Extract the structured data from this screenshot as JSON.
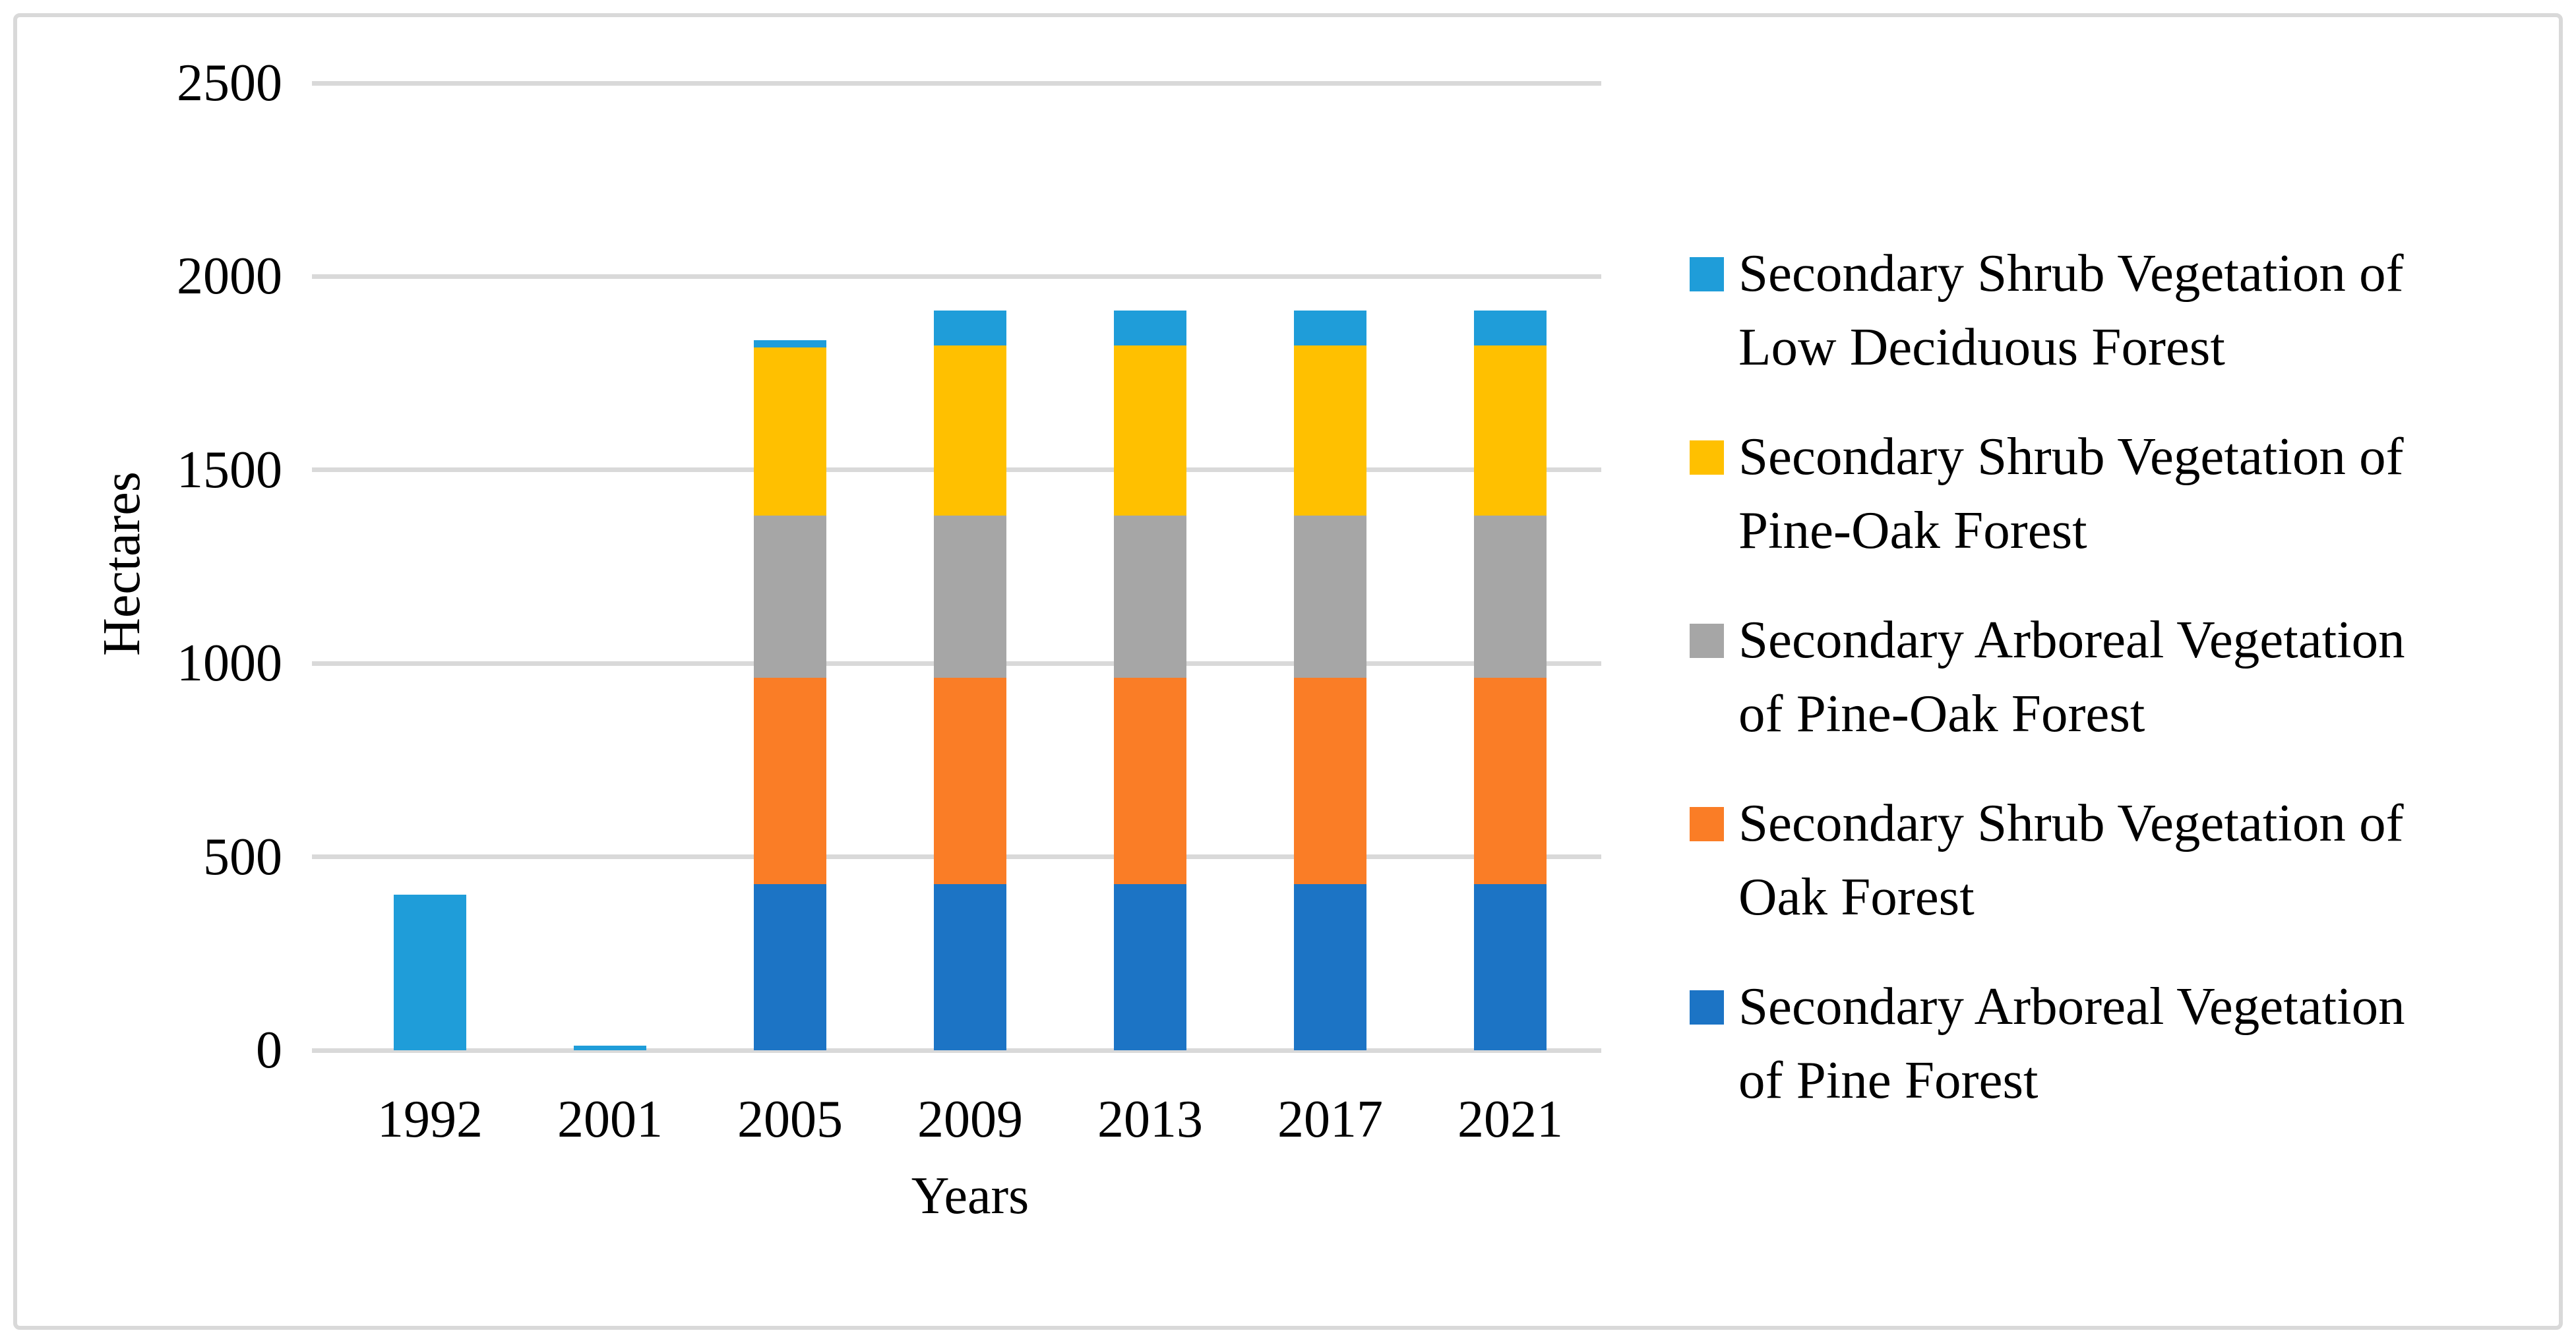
{
  "figure": {
    "background": "#FFFFFF",
    "border_color": "#D9D9D9",
    "text_color": "#000000"
  },
  "chart_data": {
    "type": "bar",
    "stacked": true,
    "orientation": "vertical",
    "title": "",
    "xlabel": "Years",
    "ylabel": "Hectares",
    "ylim": [
      0,
      2500
    ],
    "yticks": [
      0,
      500,
      1000,
      1500,
      2000,
      2500
    ],
    "grid": true,
    "gridline_color": "#D9D9D9",
    "legend_position": "right",
    "categories": [
      "1992",
      "2001",
      "2005",
      "2009",
      "2013",
      "2017",
      "2021"
    ],
    "series": [
      {
        "name": "Secondary Arboreal Vegetation of Pine Forest",
        "color": "#1C74C5",
        "values": [
          0,
          0,
          430,
          430,
          430,
          430,
          430
        ],
        "legend_label": "Secondary Arboreal Vegetation\nof Pine Forest"
      },
      {
        "name": "Secondary Shrub Vegetation of Oak Forest",
        "color": "#FA7D26",
        "values": [
          0,
          0,
          533,
          533,
          533,
          533,
          533
        ],
        "legend_label": "Secondary Shrub Vegetation of\nOak Forest"
      },
      {
        "name": "Secondary Arboreal Vegetation of Pine-Oak Forest",
        "color": "#A6A6A6",
        "values": [
          0,
          0,
          419,
          419,
          419,
          419,
          419
        ],
        "legend_label": "Secondary Arboreal Vegetation\nof Pine-Oak Forest"
      },
      {
        "name": "Secondary Shrub Vegetation of Pine-Oak Forest",
        "color": "#FFC000",
        "values": [
          0,
          0,
          434,
          440,
          440,
          440,
          440
        ],
        "legend_label": "Secondary Shrub Vegetation of\nPine-Oak Forest"
      },
      {
        "name": "Secondary Shrub Vegetation of Low Deciduous Forest",
        "color": "#1F9DD9",
        "values": [
          403,
          12,
          20,
          90,
          90,
          90,
          90
        ],
        "legend_label": "Secondary Shrub Vegetation of\nLow Deciduous Forest"
      }
    ]
  }
}
